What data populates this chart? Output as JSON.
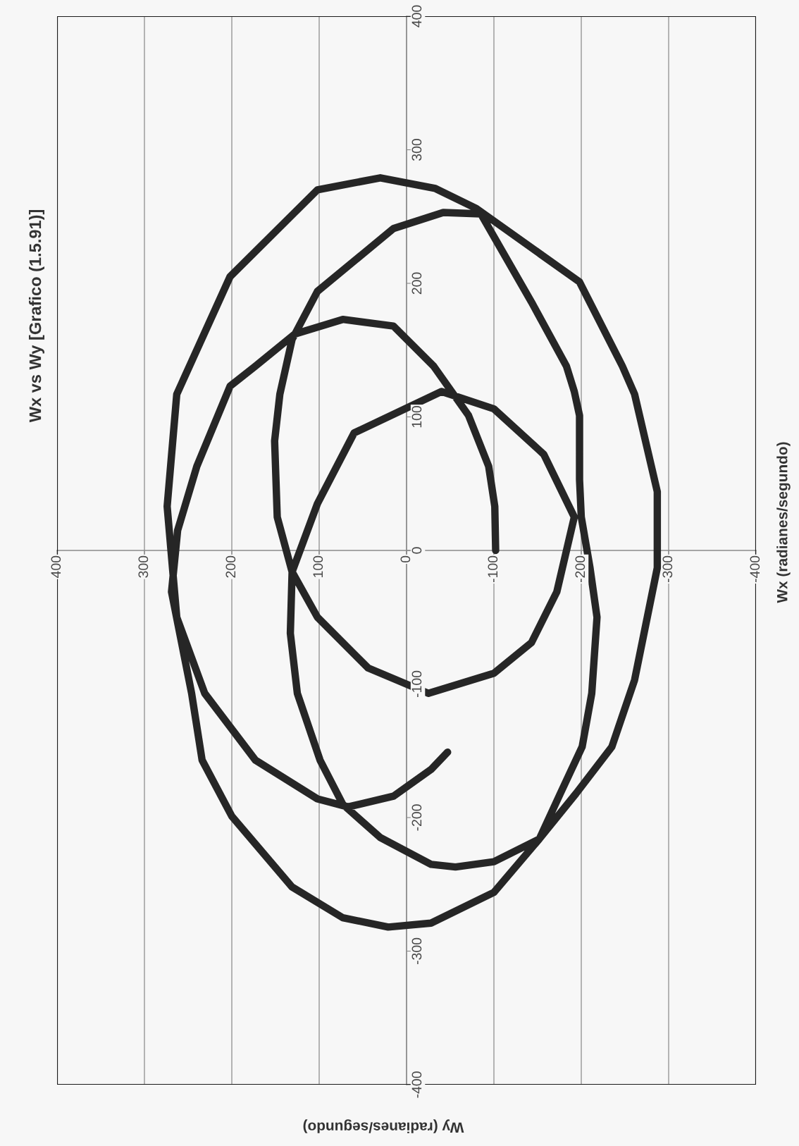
{
  "chart_data": {
    "type": "line",
    "title": "Wx vs Wy [Grafico (1.5.91)]",
    "xlabel": "Wy (radianes/segundo)",
    "ylabel": "Wx (radianes/segundo)",
    "series": [
      {
        "color": "#262626",
        "values": [
          0,
          33,
          63,
          101,
          138,
          168,
          173,
          162,
          138,
          123,
          63,
          15,
          -31,
          -107,
          -157,
          -199,
          -252,
          -275,
          -282,
          -279,
          -256,
          -216,
          -182,
          -147,
          -107,
          -50,
          -13,
          25,
          53,
          101,
          119,
          138,
          186,
          252,
          253,
          241,
          194,
          158,
          117,
          82,
          25,
          -16,
          -50,
          -88,
          -107,
          -92,
          -69,
          -31,
          25,
          72,
          106,
          119,
          88,
          35,
          -16,
          -62,
          -107,
          -157,
          -190,
          -215,
          -235,
          -237,
          -233,
          -216,
          -182,
          -147,
          -97,
          -13,
          44,
          117,
          138,
          201,
          256,
          271,
          279,
          270,
          205,
          117,
          33,
          -50,
          -107,
          -157,
          -186,
          -192,
          -184,
          -164,
          -151
        ],
        "x": [
          -102,
          -101,
          -94,
          -71,
          -31,
          15,
          73,
          128,
          173,
          202,
          240,
          262,
          269,
          246,
          234,
          200,
          131,
          73,
          21,
          -28,
          -100,
          -152,
          -176,
          -201,
          -212,
          -218,
          -210,
          -200,
          -198,
          -198,
          -192,
          -183,
          -143,
          -85,
          -42,
          15,
          102,
          131,
          145,
          151,
          148,
          131,
          102,
          44,
          -25,
          -100,
          -143,
          -172,
          -192,
          -157,
          -100,
          -40,
          60,
          102,
          131,
          133,
          125,
          99,
          73,
          30,
          -28,
          -56,
          -100,
          -152,
          -194,
          -235,
          -261,
          -287,
          -287,
          -261,
          -247,
          -198,
          -80,
          -33,
          30,
          102,
          202,
          263,
          274,
          263,
          231,
          173,
          102,
          67,
          15,
          -28,
          -47
        ]
      }
    ],
    "xlim": [
      400,
      -400
    ],
    "ylim": [
      -400,
      400
    ],
    "xticks": [
      400,
      300,
      200,
      100,
      0,
      -100,
      -200,
      -300,
      -400
    ],
    "yticks": [
      -400,
      -300,
      -200,
      -100,
      0,
      100,
      200,
      300,
      400
    ],
    "grid": "x"
  }
}
